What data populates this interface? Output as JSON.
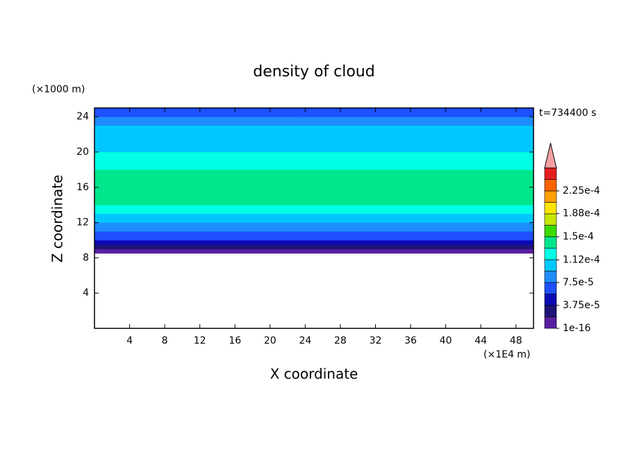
{
  "chart_data": {
    "type": "contour",
    "title": "density of cloud",
    "y_unit": "(×1000 m)",
    "x_unit": "(×1E4 m)",
    "time_label": "t=734400 s",
    "xlabel": "X coordinate",
    "ylabel": "Z coordinate",
    "xlim": [
      0,
      50
    ],
    "ylim": [
      0,
      25
    ],
    "xticks": [
      4,
      8,
      12,
      16,
      20,
      24,
      28,
      32,
      36,
      40,
      44,
      48
    ],
    "yticks": [
      4,
      8,
      12,
      16,
      20,
      24
    ],
    "profile": {
      "z": [
        8.5,
        9,
        9.5,
        10,
        10.5,
        11,
        12,
        13,
        14,
        18,
        20,
        22,
        23,
        24,
        25
      ],
      "values": [
        1e-05,
        2.5e-05,
        4.5e-05,
        6e-05,
        7e-05,
        8e-05,
        9.5e-05,
        0.000115,
        0.000135,
        0.00012,
        0.000105,
        9.5e-05,
        8e-05,
        6.5e-05,
        6.5e-05
      ]
    },
    "colorbar": {
      "levels": [
        1e-16,
        1.875e-05,
        3.75e-05,
        5.625e-05,
        7.5e-05,
        9.375e-05,
        0.0001125,
        0.00013125,
        0.00015,
        0.00016875,
        0.0001875,
        0.00020625,
        0.000225,
        0.00024375,
        0.0002625
      ],
      "colors": [
        "#5a1ea0",
        "#1e1478",
        "#0a0ab4",
        "#1e50ff",
        "#1e8cff",
        "#00c8ff",
        "#00ffe6",
        "#00e68c",
        "#3cdc00",
        "#c8e600",
        "#ffe600",
        "#ffa000",
        "#ff6400",
        "#e61e1e"
      ],
      "ticks": [
        {
          "value": 1e-16,
          "label": "1e-16"
        },
        {
          "value": 3.75e-05,
          "label": "3.75e-5"
        },
        {
          "value": 7.5e-05,
          "label": "7.5e-5"
        },
        {
          "value": 0.000112,
          "label": "1.12e-4"
        },
        {
          "value": 0.00015,
          "label": "1.5e-4"
        },
        {
          "value": 0.000188,
          "label": "1.88e-4"
        },
        {
          "value": 0.000225,
          "label": "2.25e-4"
        }
      ],
      "extend_color": "#f4a0a0"
    }
  }
}
